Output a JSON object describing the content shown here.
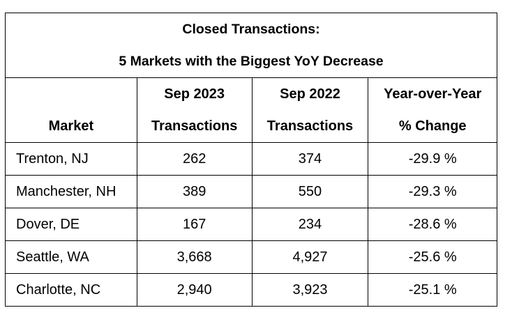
{
  "title_line1": "Closed Transactions:",
  "title_line2": "5 Markets with the Biggest YoY Decrease",
  "columns": [
    {
      "line1": "",
      "line2": "Market"
    },
    {
      "line1": "Sep 2023",
      "line2": "Transactions"
    },
    {
      "line1": "Sep 2022",
      "line2": "Transactions"
    },
    {
      "line1": "Year-over-Year",
      "line2": "% Change"
    }
  ],
  "rows": [
    [
      "Trenton, NJ",
      "262",
      "374",
      "-29.9 %"
    ],
    [
      "Manchester, NH",
      "389",
      "550",
      "-29.3 %"
    ],
    [
      "Dover, DE",
      "167",
      "234",
      "-28.6 %"
    ],
    [
      "Seattle, WA",
      "3,668",
      "4,927",
      "-25.6 %"
    ],
    [
      "Charlotte, NC",
      "2,940",
      "3,923",
      "-25.1 %"
    ]
  ]
}
